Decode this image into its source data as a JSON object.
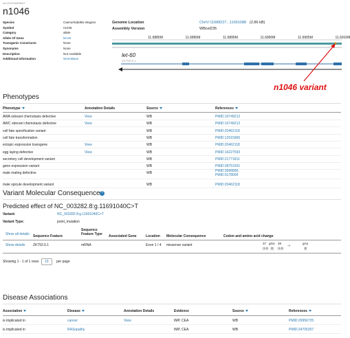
{
  "header": {
    "kind": "ALLELE/VARIANT",
    "symbol": "n1046"
  },
  "summary": [
    [
      "Species",
      "Caenorhabditis elegans"
    ],
    [
      "Symbol",
      "n1046"
    ],
    [
      "Category",
      "allele"
    ],
    [
      "Allele Of Gene",
      "let-60"
    ],
    [
      "Transgenic Constructs",
      "None"
    ],
    [
      "Synonyms",
      "None"
    ],
    [
      "Description",
      "Not Available"
    ],
    [
      "Additional Information",
      "WormBase"
    ]
  ],
  "genome": {
    "location_label": "Genome Location",
    "location": "ChrIV:11688227...11691088",
    "size": "(2.86 kB)",
    "assembly_label": "Assembly Version",
    "assembly": "WBcel235",
    "ticks": [
      "11.6885M",
      "11.6890M",
      "11.6895M",
      "11.6900M",
      "11.6905M",
      "11.6910M"
    ],
    "gene": "let-60",
    "transcript": "ZK792.6.1",
    "annotation": "n1046 variant"
  },
  "phenotypes": {
    "title": "Phenotypes",
    "headers": [
      "Phenotype",
      "Annotation Details",
      "Source",
      "References"
    ],
    "rows": [
      [
        "AWA odorant chemotaxis defective",
        "View",
        "WB",
        "PMID:10749212"
      ],
      [
        "AWC odorant chemotaxis defective",
        "View",
        "WB",
        "PMID:10749212"
      ],
      [
        "cell fate specification variant",
        null,
        "WB",
        "PMID:20462118"
      ],
      [
        "cell fate transformation",
        null,
        "WB",
        "PMID:12015965"
      ],
      [
        "ectopic expression transgene",
        "View",
        "WB",
        "PMID:20462118"
      ],
      [
        "egg laying defective",
        "View",
        "WB",
        "PMID:16227593"
      ],
      [
        "secretory cell development variant",
        null,
        "WB",
        "PMID:21771811"
      ],
      [
        "gene expression variant",
        null,
        "WB",
        "PMID:28751501"
      ],
      [
        "male mating defective",
        null,
        "WB",
        "PMID:3996896, PMID:9178006"
      ],
      [
        "male spicule development variant",
        null,
        "WB",
        "PMID:20462118"
      ]
    ]
  },
  "variant": {
    "title": "Variant Molecular Consequences",
    "help": "?",
    "predicted": "Predicted effect of NC_003282.8:g.11691040C>T",
    "variant_label": "Variant:",
    "variant": "NC_003282.8:g.11691040C>T",
    "type_label": "Variant Type:",
    "type": "point_mutation",
    "headers": [
      "Show all details",
      "Sequence Feature",
      "Sequence Feature Type",
      "Associated Gene",
      "Location",
      "Molecular Consequence",
      "Codon and amino acid change"
    ],
    "rows": [
      [
        "Show details",
        "ZK792.6.1",
        "mRNA",
        null,
        "Exon 1 / 4",
        "missense variant"
      ]
    ],
    "codon": [
      "37",
      "gGa",
      "39",
      "(13)",
      "G",
      "(13)",
      "->",
      "gAa",
      "E"
    ],
    "pager": {
      "showing": "Showing 1 - 1 of 1 rows",
      "page_size": "10",
      "per_page": "per page"
    }
  },
  "disease": {
    "title": "Disease Associations",
    "headers": [
      "Association",
      "Disease",
      "Annotation Details",
      "Evidence",
      "Source",
      "References"
    ],
    "rows": [
      [
        "is implicated in",
        "cancer",
        "View",
        "IMP, CEA",
        "WB",
        "PMID:29956725"
      ],
      [
        "is implicated in",
        "RASopathy",
        null,
        "IMP, CEA",
        "WB",
        "PMID:24705357"
      ]
    ]
  }
}
